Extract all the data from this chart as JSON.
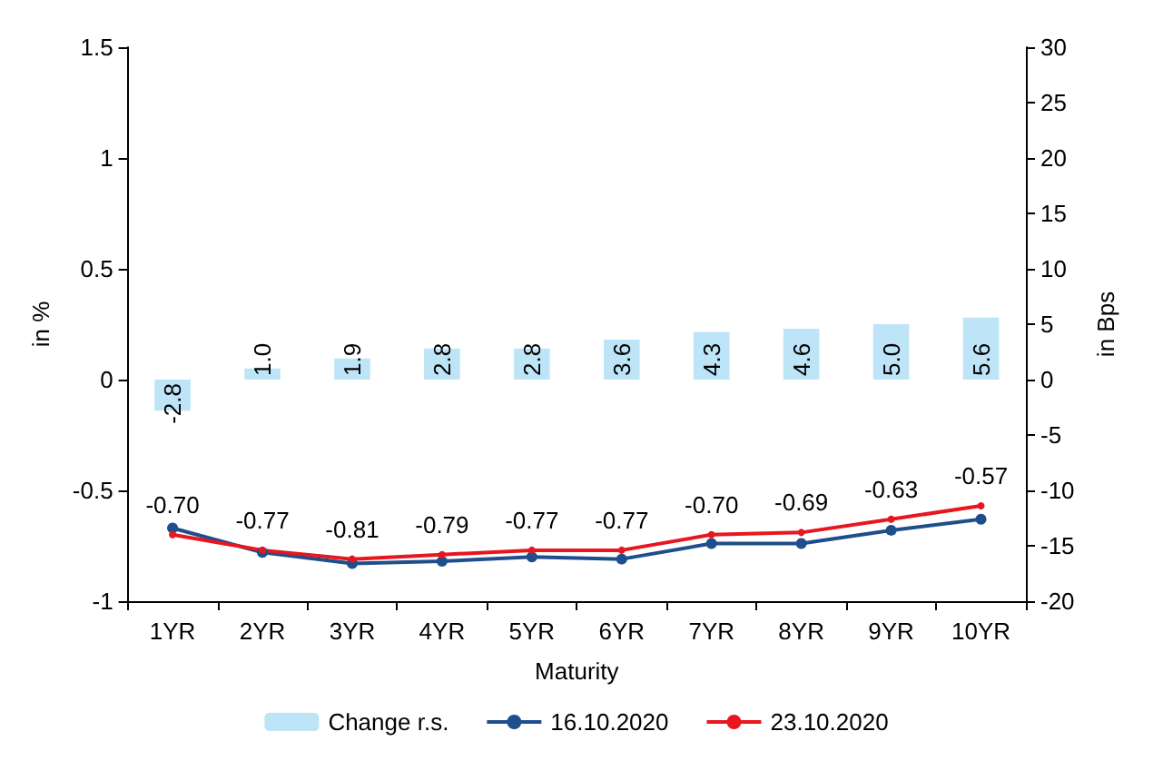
{
  "chart_data": {
    "type": "line",
    "xlabel": "Maturity",
    "ylabel": "in %",
    "y2label": "in Bps",
    "categories": [
      "1YR",
      "2YR",
      "3YR",
      "4YR",
      "5YR",
      "6YR",
      "7YR",
      "8YR",
      "9YR",
      "10YR"
    ],
    "series": [
      {
        "name": "Change r.s.",
        "type": "bar",
        "axis": "y2",
        "color": "#bde4f7",
        "values": [
          -2.8,
          1.0,
          1.9,
          2.8,
          2.8,
          3.6,
          4.3,
          4.6,
          5.0,
          5.6
        ],
        "value_labels": [
          "-2.8",
          "1.0",
          "1.9",
          "2.8",
          "2.8",
          "3.6",
          "4.3",
          "4.6",
          "5.0",
          "5.6"
        ]
      },
      {
        "name": "16.10.2020",
        "color": "#1f4e8c",
        "values": [
          -0.67,
          -0.78,
          -0.83,
          -0.82,
          -0.8,
          -0.81,
          -0.74,
          -0.74,
          -0.68,
          -0.63
        ]
      },
      {
        "name": "23.10.2020",
        "color": "#e8161e",
        "values": [
          -0.7,
          -0.77,
          -0.81,
          -0.79,
          -0.77,
          -0.77,
          -0.7,
          -0.69,
          -0.63,
          -0.57
        ],
        "value_labels": [
          "-0.70",
          "-0.77",
          "-0.81",
          "-0.79",
          "-0.77",
          "-0.77",
          "-0.70",
          "-0.69",
          "-0.63",
          "-0.57"
        ]
      }
    ],
    "ylim": [
      -1,
      1.5
    ],
    "yticks": [
      -1,
      -0.5,
      0,
      0.5,
      1,
      1.5
    ],
    "y2lim": [
      -20,
      30
    ],
    "y2ticks": [
      -20,
      -15,
      -10,
      -5,
      0,
      5,
      10,
      15,
      20,
      25,
      30
    ],
    "grid": false,
    "legend": "bottom",
    "marker": "circle",
    "line_style": "solid"
  }
}
